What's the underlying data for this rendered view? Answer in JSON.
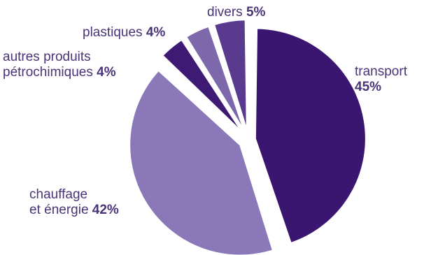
{
  "chart_data": {
    "type": "pie",
    "unit": "%",
    "slices": [
      {
        "label": "transport",
        "value": 45,
        "value_label": "45%",
        "color": "#3a1670"
      },
      {
        "label": "chauffage et énergie",
        "value": 42,
        "value_label": "42%",
        "color": "#8a78b8"
      },
      {
        "label": "autres produits pétrochimiques",
        "value": 4,
        "value_label": "4%",
        "color": "#3f1a74"
      },
      {
        "label": "plastiques",
        "value": 4,
        "value_label": "4%",
        "color": "#7c68aa"
      },
      {
        "label": "divers",
        "value": 5,
        "value_label": "5%",
        "color": "#5a3a8e"
      }
    ],
    "labels": {
      "transport": {
        "line1": "transport",
        "value": "45%"
      },
      "chauffage": {
        "line1": "chauffage",
        "line2": "et énergie",
        "value": "42%"
      },
      "autres": {
        "line1": "autres produits",
        "line2": "pétrochimiques",
        "value": "4%"
      },
      "plastiques": {
        "line1": "plastiques",
        "value": "4%"
      },
      "divers": {
        "line1": "divers",
        "value": "5%"
      }
    }
  }
}
